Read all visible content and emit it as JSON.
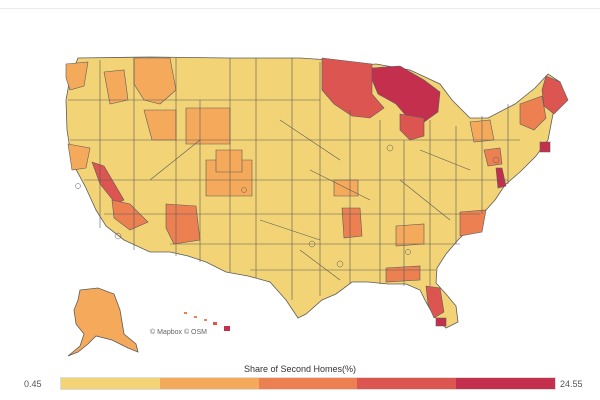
{
  "map": {
    "attribution": "© Mapbox © OSM"
  },
  "legend": {
    "title": "Share of Second Homes(%)",
    "min_label": "0.45",
    "max_label": "24.55",
    "bins": [
      "#f2d375",
      "#f5a95a",
      "#ec8051",
      "#dd5550",
      "#c42f4e"
    ]
  },
  "colors": {
    "border": "#5c5c5c",
    "lowest": "#f2d375",
    "low": "#f5a95a",
    "mid": "#ec8051",
    "high": "#dd5550",
    "highest": "#c42f4e"
  }
}
